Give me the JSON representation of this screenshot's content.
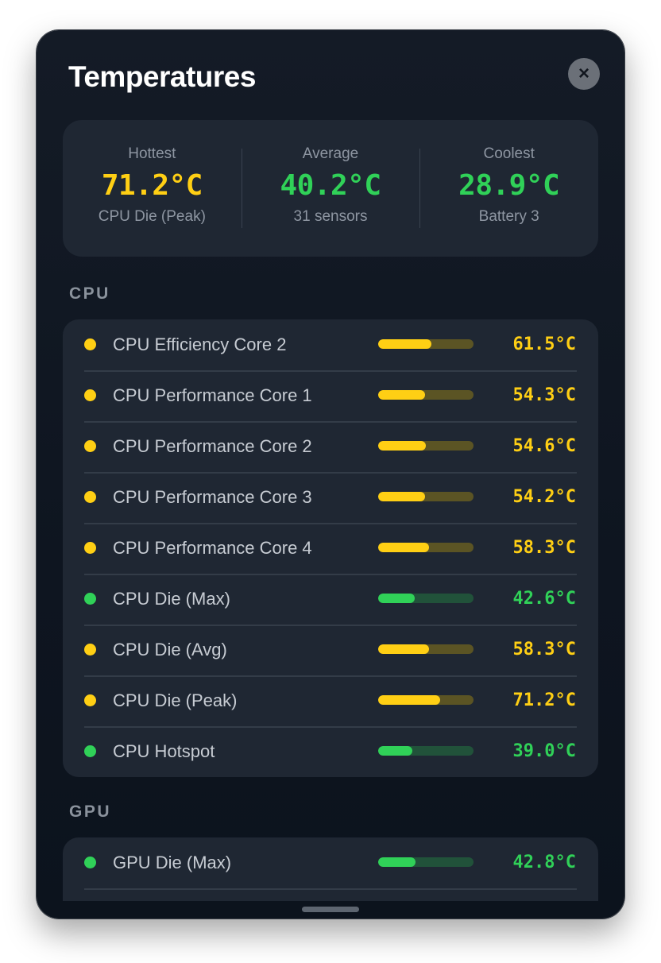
{
  "window": {
    "title": "Temperatures",
    "close_icon": "×"
  },
  "colors": {
    "warm": "#ffcf14",
    "warm_track": "#5b5424",
    "cool": "#30d158",
    "cool_track": "#21523a"
  },
  "summary": {
    "hottest": {
      "label": "Hottest",
      "value": "71.2°C",
      "sub": "CPU Die (Peak)",
      "level": "warm"
    },
    "average": {
      "label": "Average",
      "value": "40.2°C",
      "sub": "31 sensors",
      "level": "cool"
    },
    "coolest": {
      "label": "Coolest",
      "value": "28.9°C",
      "sub": "Battery 3",
      "level": "cool"
    }
  },
  "sections": [
    {
      "title": "CPU",
      "sensors": [
        {
          "name": "CPU Efficiency Core 2",
          "temp": "61.5°C",
          "level": "warm",
          "fill": 0.56
        },
        {
          "name": "CPU Performance Core 1",
          "temp": "54.3°C",
          "level": "warm",
          "fill": 0.49
        },
        {
          "name": "CPU Performance Core 2",
          "temp": "54.6°C",
          "level": "warm",
          "fill": 0.5
        },
        {
          "name": "CPU Performance Core 3",
          "temp": "54.2°C",
          "level": "warm",
          "fill": 0.49
        },
        {
          "name": "CPU Performance Core 4",
          "temp": "58.3°C",
          "level": "warm",
          "fill": 0.53
        },
        {
          "name": "CPU Die (Max)",
          "temp": "42.6°C",
          "level": "cool",
          "fill": 0.38
        },
        {
          "name": "CPU Die (Avg)",
          "temp": "58.3°C",
          "level": "warm",
          "fill": 0.53
        },
        {
          "name": "CPU Die (Peak)",
          "temp": "71.2°C",
          "level": "warm",
          "fill": 0.65
        },
        {
          "name": "CPU Hotspot",
          "temp": "39.0°C",
          "level": "cool",
          "fill": 0.36
        }
      ]
    },
    {
      "title": "GPU",
      "sensors": [
        {
          "name": "GPU Die (Max)",
          "temp": "42.8°C",
          "level": "cool",
          "fill": 0.39
        },
        {
          "name": "",
          "temp": "",
          "level": "cool",
          "fill": 0
        }
      ]
    }
  ]
}
